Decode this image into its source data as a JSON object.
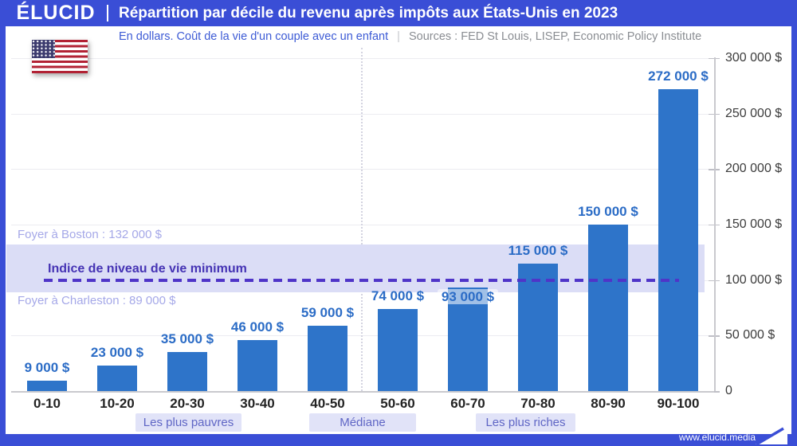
{
  "header": {
    "logo": "ÉLUCID",
    "title": "Répartition par décile du revenu après impôts aux États-Unis en 2023"
  },
  "subtitle": {
    "note": "En dollars. Coût de la vie d'un couple avec un enfant",
    "separator": "|",
    "sources": "Sources : FED St Louis, LISEP, Economic Policy Institute"
  },
  "footer": {
    "url": "www.elucid.media"
  },
  "chart_data": {
    "type": "bar",
    "title": "Répartition par décile du revenu après impôts aux États-Unis en 2023",
    "xlabel": "",
    "ylabel": "",
    "ylim": [
      0,
      300000
    ],
    "grid": true,
    "categories": [
      "0-10",
      "10-20",
      "20-30",
      "30-40",
      "40-50",
      "50-60",
      "60-70",
      "70-80",
      "80-90",
      "90-100"
    ],
    "values": [
      9000,
      23000,
      35000,
      46000,
      59000,
      74000,
      93000,
      115000,
      150000,
      272000
    ],
    "value_labels": [
      "9 000 $",
      "23 000 $",
      "35 000 $",
      "46 000 $",
      "59 000 $",
      "74 000 $",
      "93 000 $",
      "115 000 $",
      "150 000 $",
      "272 000 $"
    ],
    "y_ticks": [
      {
        "value": 0,
        "label": "0"
      },
      {
        "value": 50000,
        "label": "50 000 $"
      },
      {
        "value": 100000,
        "label": "100 000 $"
      },
      {
        "value": 150000,
        "label": "150 000 $"
      },
      {
        "value": 200000,
        "label": "200 000 $"
      },
      {
        "value": 250000,
        "label": "250 000 $"
      },
      {
        "value": 300000,
        "label": "300 000 $"
      }
    ],
    "reference_band": {
      "top_value": 132000,
      "bottom_value": 89000,
      "top_label": "Foyer à Boston : 132 000 $",
      "bottom_label": "Foyer à Charleston : 89 000 $",
      "line_value": 100000,
      "line_label": "Indice de niveau de vie minimum"
    },
    "group_labels": [
      "Les plus pauvres",
      "Médiane",
      "Les plus riches"
    ],
    "colors": {
      "bar": "#2e74c9",
      "value_text": "#2b6cc6",
      "band": "#dbddf6",
      "dashed_line": "#4f35c8",
      "header": "#3a4ed6",
      "group_box": "#e1e3f8",
      "group_text": "#5f66c5",
      "foyer_text": "#a5a8e8",
      "indice_text": "#4533b4"
    }
  }
}
